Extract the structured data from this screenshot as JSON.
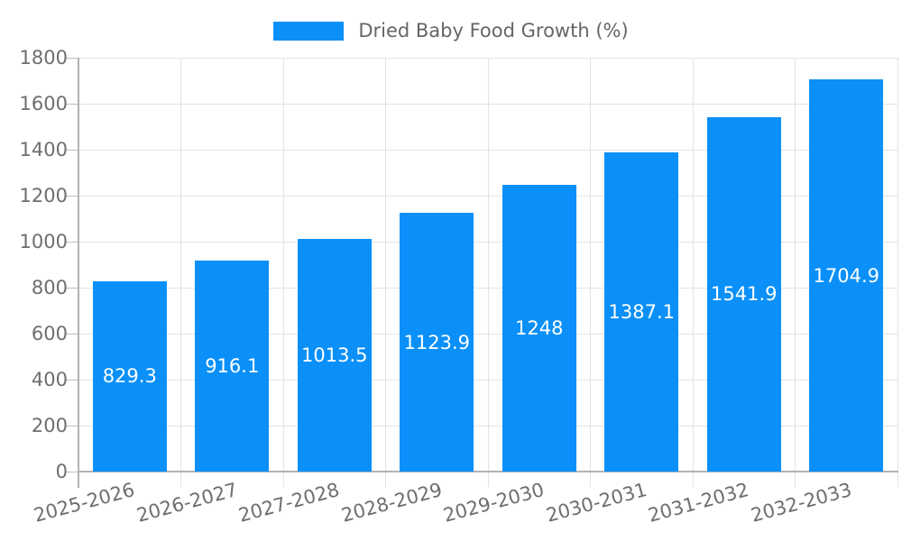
{
  "legend": {
    "label": "Dried Baby Food Growth (%)"
  },
  "colors": {
    "bar": "#0a90f8",
    "grid": "#e3e3e3",
    "axis": "#b3b3b3",
    "tick": "#bdbdbd",
    "tick_label": "#6e6e6e",
    "bar_label": "#ffffff",
    "legend_text": "#666666",
    "background": "#ffffff"
  },
  "chart_data": {
    "type": "bar",
    "title": "Dried Baby Food Growth (%)",
    "categories": [
      "2025-2026",
      "2026-2027",
      "2027-2028",
      "2028-2029",
      "2029-2030",
      "2030-2031",
      "2031-2032",
      "2032-2033"
    ],
    "values": [
      829.3,
      916.1,
      1013.5,
      1123.9,
      1248,
      1387.1,
      1541.9,
      1704.9
    ],
    "xlabel": "",
    "ylabel": "",
    "ylim": [
      0,
      1800
    ],
    "ytick_step": 200,
    "ytick_labels": [
      "0",
      "200",
      "400",
      "600",
      "800",
      "1000",
      "1200",
      "1400",
      "1600",
      "1800"
    ],
    "grid": true,
    "legend_position": "top-center",
    "bar_value_labels": "inside-center",
    "xtick_rotation_deg": -15
  }
}
